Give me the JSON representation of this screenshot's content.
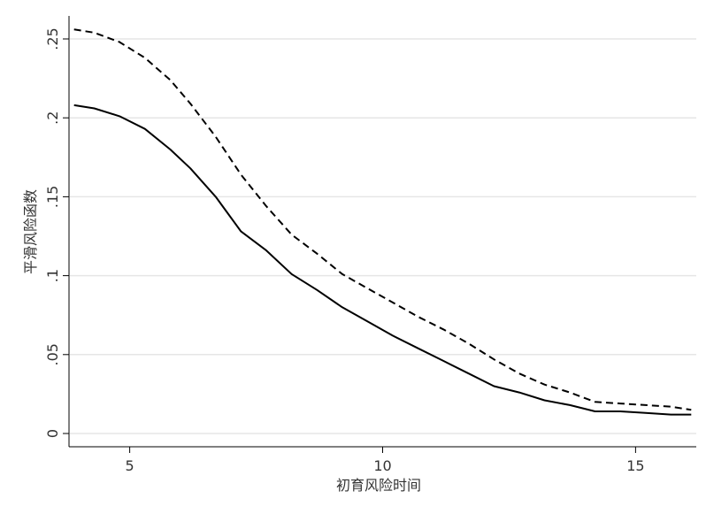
{
  "chart_data": {
    "type": "line",
    "xlabel": "初育风险时间",
    "ylabel": "平滑风险函数",
    "xlim": [
      3.8,
      16.2
    ],
    "ylim": [
      0,
      0.27
    ],
    "x_ticks": [
      5,
      10,
      15
    ],
    "x_tick_labels": [
      "5",
      "10",
      "15"
    ],
    "y_ticks": [
      0,
      0.05,
      0.1,
      0.15,
      0.2,
      0.25
    ],
    "y_tick_labels": [
      "0",
      ".05",
      ".1",
      ".15",
      ".2",
      ".25"
    ],
    "grid": "horizontal",
    "series": [
      {
        "style": "dashed",
        "color": "#000000",
        "x": [
          3.9,
          4.3,
          4.8,
          5.3,
          5.8,
          6.2,
          6.7,
          7.2,
          7.7,
          8.2,
          8.7,
          9.2,
          9.7,
          10.2,
          10.7,
          11.2,
          11.7,
          12.2,
          12.7,
          13.2,
          13.7,
          14.2,
          14.7,
          15.2,
          15.7,
          16.1
        ],
        "y": [
          0.256,
          0.254,
          0.248,
          0.238,
          0.224,
          0.209,
          0.188,
          0.164,
          0.144,
          0.126,
          0.114,
          0.101,
          0.092,
          0.083,
          0.074,
          0.066,
          0.057,
          0.047,
          0.038,
          0.031,
          0.026,
          0.02,
          0.019,
          0.018,
          0.017,
          0.015
        ]
      },
      {
        "style": "solid",
        "color": "#000000",
        "x": [
          3.9,
          4.3,
          4.8,
          5.3,
          5.8,
          6.2,
          6.7,
          7.2,
          7.7,
          8.2,
          8.7,
          9.2,
          9.7,
          10.2,
          10.7,
          11.2,
          11.7,
          12.2,
          12.7,
          13.2,
          13.7,
          14.2,
          14.7,
          15.2,
          15.7,
          16.1
        ],
        "y": [
          0.208,
          0.206,
          0.201,
          0.193,
          0.18,
          0.168,
          0.15,
          0.128,
          0.116,
          0.101,
          0.091,
          0.08,
          0.071,
          0.062,
          0.054,
          0.046,
          0.038,
          0.03,
          0.026,
          0.021,
          0.018,
          0.014,
          0.014,
          0.013,
          0.012,
          0.012
        ]
      }
    ]
  }
}
